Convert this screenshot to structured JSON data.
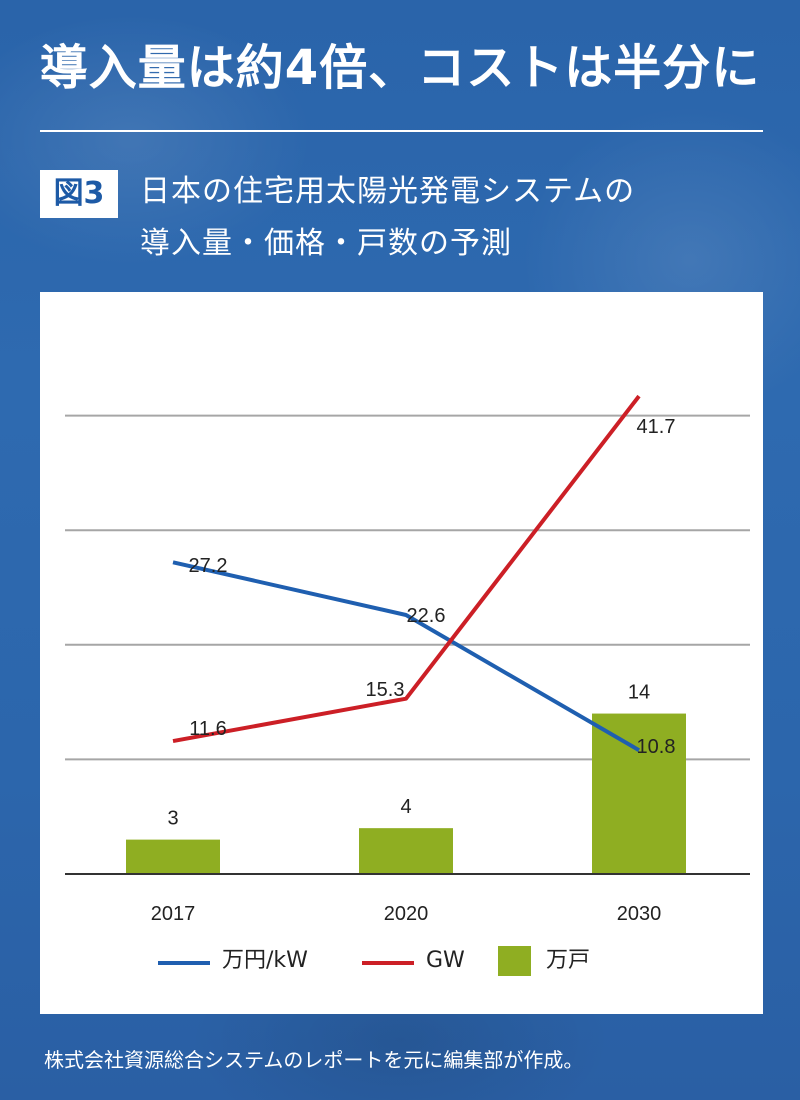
{
  "headline": "導入量は約4倍、コストは半分に",
  "figure": {
    "label": "図3",
    "title_line1": "日本の住宅用太陽光発電システムの",
    "title_line2": "導入量・価格・戸数の予測"
  },
  "colors": {
    "price_line": "#1f5fb0",
    "gw_line": "#cc1f26",
    "households_bar": "#8fae22",
    "grid": "#a6a6a6",
    "axis": "#333333"
  },
  "chart_data": {
    "type": "bar+line",
    "categories": [
      "2017",
      "2020",
      "2030"
    ],
    "series": [
      {
        "name": "万円/kW",
        "kind": "line",
        "color": "#1f5fb0",
        "values": [
          27.2,
          22.6,
          10.8
        ],
        "labels": [
          "27.2",
          "22.6",
          "10.8"
        ]
      },
      {
        "name": "GW",
        "kind": "line",
        "color": "#cc1f26",
        "values": [
          11.6,
          15.3,
          41.7
        ],
        "labels": [
          "11.6",
          "15.3",
          "41.7"
        ]
      },
      {
        "name": "万戸",
        "kind": "bar",
        "color": "#8fae22",
        "values": [
          3,
          4,
          14
        ],
        "labels": [
          "3",
          "4",
          "14"
        ]
      }
    ],
    "ylim": [
      0,
      50
    ],
    "gridlines": [
      10,
      20,
      30,
      40
    ],
    "grid": true,
    "legend_position": "bottom"
  },
  "source_note": "株式会社資源総合システムのレポートを元に編集部が作成。"
}
